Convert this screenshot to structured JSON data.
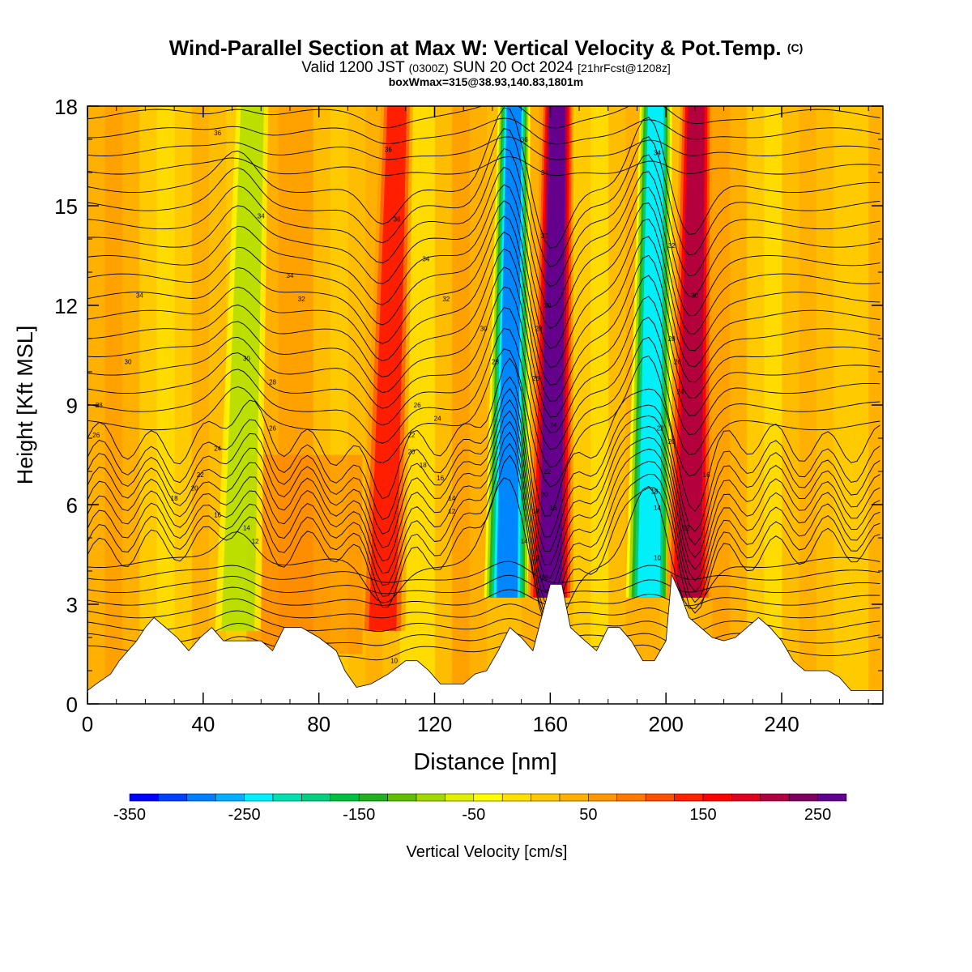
{
  "title": {
    "main": "Wind-Parallel Section at Max W: Vertical Velocity & Pot.Temp.",
    "copyright": "(C)",
    "valid_a": "Valid 1200 JST",
    "valid_b": "(0300Z)",
    "valid_c": "SUN 20 Oct 2024",
    "valid_d": "[21hrFcst@1208z]",
    "box": "boxWmax=315@38.93,140.83,1801m"
  },
  "chart_data": {
    "type": "heatmap",
    "xlabel": "Distance [nm]",
    "ylabel": "Height [Kft MSL]",
    "xlim": [
      0,
      275
    ],
    "ylim": [
      0,
      18
    ],
    "x_ticks": [
      0,
      40,
      80,
      120,
      160,
      200,
      240
    ],
    "y_ticks": [
      0,
      3,
      6,
      9,
      12,
      15,
      18
    ],
    "colorbar": {
      "label": "Vertical Velocity [cm/s]",
      "range": [
        -350,
        275
      ],
      "tick_values": [
        -350,
        -250,
        -150,
        -50,
        50,
        150,
        250
      ],
      "colors": [
        "#0000ff",
        "#0040ff",
        "#0080ff",
        "#00b0ff",
        "#00f0ff",
        "#00e0b0",
        "#00d080",
        "#00c040",
        "#20b020",
        "#60c000",
        "#a0d800",
        "#e0f000",
        "#ffff00",
        "#ffe000",
        "#ffc800",
        "#ffb000",
        "#ff9800",
        "#ff7800",
        "#ff5000",
        "#ff2000",
        "#ff0000",
        "#e00020",
        "#b00040",
        "#800060",
        "#600090"
      ]
    },
    "terrain_kft": [
      [
        0,
        0.4
      ],
      [
        3,
        0.6
      ],
      [
        8,
        0.9
      ],
      [
        11,
        1.3
      ],
      [
        14,
        1.6
      ],
      [
        17,
        1.9
      ],
      [
        20,
        2.3
      ],
      [
        23,
        2.6
      ],
      [
        27,
        2.3
      ],
      [
        31,
        2.0
      ],
      [
        35,
        1.6
      ],
      [
        39,
        2.0
      ],
      [
        43,
        2.3
      ],
      [
        47,
        1.9
      ],
      [
        53,
        1.9
      ],
      [
        60,
        1.9
      ],
      [
        64,
        1.6
      ],
      [
        68,
        2.3
      ],
      [
        74,
        2.3
      ],
      [
        80,
        2.0
      ],
      [
        86,
        1.6
      ],
      [
        89,
        1.0
      ],
      [
        93,
        0.5
      ],
      [
        98,
        0.6
      ],
      [
        104,
        0.9
      ],
      [
        110,
        1.3
      ],
      [
        114,
        1.3
      ],
      [
        118,
        1.0
      ],
      [
        122,
        0.6
      ],
      [
        126,
        0.6
      ],
      [
        130,
        0.6
      ],
      [
        134,
        0.9
      ],
      [
        138,
        1.0
      ],
      [
        142,
        1.6
      ],
      [
        146,
        2.3
      ],
      [
        150,
        2.0
      ],
      [
        154,
        1.6
      ],
      [
        157,
        2.6
      ],
      [
        160,
        3.6
      ],
      [
        164,
        3.6
      ],
      [
        167,
        2.3
      ],
      [
        172,
        1.9
      ],
      [
        176,
        1.6
      ],
      [
        180,
        2.3
      ],
      [
        184,
        2.3
      ],
      [
        188,
        1.9
      ],
      [
        192,
        1.3
      ],
      [
        196,
        1.3
      ],
      [
        200,
        1.9
      ],
      [
        202,
        3.9
      ],
      [
        205,
        3.3
      ],
      [
        208,
        2.6
      ],
      [
        212,
        2.3
      ],
      [
        216,
        2.0
      ],
      [
        220,
        1.9
      ],
      [
        224,
        2.0
      ],
      [
        228,
        2.3
      ],
      [
        232,
        2.6
      ],
      [
        236,
        2.3
      ],
      [
        240,
        1.9
      ],
      [
        244,
        1.3
      ],
      [
        248,
        1.0
      ],
      [
        252,
        1.0
      ],
      [
        256,
        1.0
      ],
      [
        260,
        0.8
      ],
      [
        264,
        0.4
      ],
      [
        275,
        0.4
      ]
    ],
    "wave_features": [
      {
        "x": 52,
        "w": -120
      },
      {
        "x": 102,
        "w": 150
      },
      {
        "x": 145,
        "w": -300
      },
      {
        "x": 160,
        "w": 250
      },
      {
        "x": 194,
        "w": -280
      },
      {
        "x": 208,
        "w": 200
      }
    ],
    "contour_labels": [
      {
        "text": "36",
        "x": 45,
        "y": 17.2
      },
      {
        "text": "34",
        "x": 18,
        "y": 12.3
      },
      {
        "text": "30",
        "x": 14,
        "y": 10.3
      },
      {
        "text": "28",
        "x": 4,
        "y": 9.0
      },
      {
        "text": "26",
        "x": 3,
        "y": 8.1
      },
      {
        "text": "24",
        "x": 45,
        "y": 7.7
      },
      {
        "text": "22",
        "x": 39,
        "y": 6.9
      },
      {
        "text": "20",
        "x": 37,
        "y": 6.5
      },
      {
        "text": "18",
        "x": 30,
        "y": 6.2
      },
      {
        "text": "16",
        "x": 45,
        "y": 5.7
      },
      {
        "text": "14",
        "x": 55,
        "y": 5.3
      },
      {
        "text": "12",
        "x": 58,
        "y": 4.9
      },
      {
        "text": "34",
        "x": 60,
        "y": 14.7
      },
      {
        "text": "34",
        "x": 70,
        "y": 12.9
      },
      {
        "text": "32",
        "x": 74,
        "y": 12.2
      },
      {
        "text": "30",
        "x": 55,
        "y": 10.4
      },
      {
        "text": "28",
        "x": 64,
        "y": 9.7
      },
      {
        "text": "26",
        "x": 64,
        "y": 8.3
      },
      {
        "text": "36",
        "x": 104,
        "y": 16.7
      },
      {
        "text": "36",
        "x": 107,
        "y": 14.6
      },
      {
        "text": "34",
        "x": 117,
        "y": 13.4
      },
      {
        "text": "32",
        "x": 124,
        "y": 12.2
      },
      {
        "text": "30",
        "x": 137,
        "y": 11.3
      },
      {
        "text": "28",
        "x": 141,
        "y": 10.3
      },
      {
        "text": "26",
        "x": 114,
        "y": 9.0
      },
      {
        "text": "24",
        "x": 121,
        "y": 8.6
      },
      {
        "text": "22",
        "x": 112,
        "y": 8.1
      },
      {
        "text": "20",
        "x": 112,
        "y": 7.6
      },
      {
        "text": "18",
        "x": 116,
        "y": 7.2
      },
      {
        "text": "16",
        "x": 122,
        "y": 6.8
      },
      {
        "text": "14",
        "x": 126,
        "y": 6.2
      },
      {
        "text": "12",
        "x": 126,
        "y": 5.8
      },
      {
        "text": "10",
        "x": 106,
        "y": 1.3
      },
      {
        "text": "36",
        "x": 151,
        "y": 17.0
      },
      {
        "text": "34",
        "x": 158,
        "y": 16.0
      },
      {
        "text": "32",
        "x": 158,
        "y": 14.1
      },
      {
        "text": "30",
        "x": 159,
        "y": 12.0
      },
      {
        "text": "28",
        "x": 156,
        "y": 11.3
      },
      {
        "text": "26",
        "x": 155,
        "y": 9.8
      },
      {
        "text": "24",
        "x": 161,
        "y": 8.4
      },
      {
        "text": "22",
        "x": 159,
        "y": 7.0
      },
      {
        "text": "20",
        "x": 158,
        "y": 6.3
      },
      {
        "text": "18",
        "x": 155,
        "y": 5.8
      },
      {
        "text": "16",
        "x": 161,
        "y": 5.9
      },
      {
        "text": "14",
        "x": 151,
        "y": 4.9
      },
      {
        "text": "12",
        "x": 155,
        "y": 4.4
      },
      {
        "text": "10",
        "x": 158,
        "y": 3.8
      },
      {
        "text": "34",
        "x": 197,
        "y": 16.6
      },
      {
        "text": "32",
        "x": 202,
        "y": 13.8
      },
      {
        "text": "30",
        "x": 210,
        "y": 12.3
      },
      {
        "text": "28",
        "x": 202,
        "y": 11.0
      },
      {
        "text": "26",
        "x": 204,
        "y": 10.3
      },
      {
        "text": "24",
        "x": 205,
        "y": 9.4
      },
      {
        "text": "22",
        "x": 198,
        "y": 8.3
      },
      {
        "text": "20",
        "x": 202,
        "y": 7.9
      },
      {
        "text": "18",
        "x": 196,
        "y": 6.4
      },
      {
        "text": "16",
        "x": 214,
        "y": 6.9
      },
      {
        "text": "14",
        "x": 197,
        "y": 5.9
      },
      {
        "text": "12",
        "x": 207,
        "y": 5.3
      },
      {
        "text": "10",
        "x": 197,
        "y": 4.4
      }
    ]
  }
}
